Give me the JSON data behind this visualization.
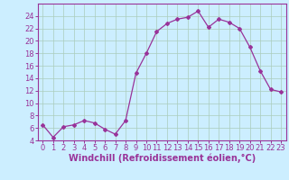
{
  "x": [
    0,
    1,
    2,
    3,
    4,
    5,
    6,
    7,
    8,
    9,
    10,
    11,
    12,
    13,
    14,
    15,
    16,
    17,
    18,
    19,
    20,
    21,
    22,
    23
  ],
  "y": [
    6.5,
    4.5,
    6.2,
    6.5,
    7.2,
    6.8,
    5.8,
    5.0,
    7.2,
    14.8,
    18.0,
    21.5,
    22.8,
    23.5,
    23.8,
    24.8,
    22.2,
    23.5,
    23.0,
    22.0,
    19.0,
    15.2,
    12.2,
    11.8
  ],
  "line_color": "#993399",
  "marker": "D",
  "marker_size": 2,
  "bg_color": "#cceeff",
  "grid_color": "#aaddcc",
  "xlabel": "Windchill (Refroidissement éolien,°C)",
  "xlabel_color": "#993399",
  "tick_color": "#993399",
  "axis_color": "#993399",
  "ylim": [
    4,
    26
  ],
  "yticks": [
    4,
    6,
    8,
    10,
    12,
    14,
    16,
    18,
    20,
    22,
    24
  ],
  "xlim": [
    -0.5,
    23.5
  ],
  "xticks": [
    0,
    1,
    2,
    3,
    4,
    5,
    6,
    7,
    8,
    9,
    10,
    11,
    12,
    13,
    14,
    15,
    16,
    17,
    18,
    19,
    20,
    21,
    22,
    23
  ],
  "tick_fontsize": 6,
  "xlabel_fontsize": 7
}
